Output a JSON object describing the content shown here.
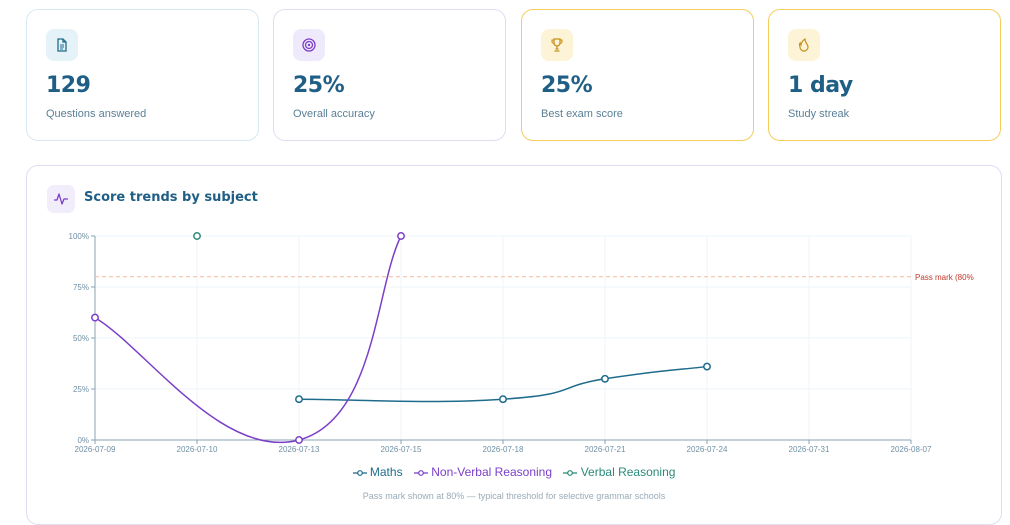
{
  "stats": [
    {
      "value": "129",
      "label": "Questions answered",
      "icon": "document-icon"
    },
    {
      "value": "25%",
      "label": "Overall accuracy",
      "icon": "target-icon"
    },
    {
      "value": "25%",
      "label": "Best exam score",
      "icon": "trophy-icon"
    },
    {
      "value": "1 day",
      "label": "Study streak",
      "icon": "flame-icon"
    }
  ],
  "trends": {
    "title": "Score trends by subject",
    "icon": "activity-icon",
    "note": "Pass mark shown at 80% — typical threshold for selective grammar schools"
  },
  "colors": {
    "maths": "#1f6b8c",
    "nonverbal": "#7b3fc7",
    "verbal": "#2a8a7a",
    "passline": "#f2b9a0",
    "passlabel": "#c0392b",
    "accent_gold": "#c7921a"
  },
  "chart_data": {
    "type": "line",
    "x_ticks": [
      "2026-07-09",
      "2026-07-10",
      "2026-07-13",
      "2026-07-15",
      "2026-07-18",
      "2026-07-21",
      "2026-07-24",
      "2026-07-31",
      "2026-08-07"
    ],
    "y_ticks": [
      "0%",
      "25%",
      "50%",
      "75%",
      "100%"
    ],
    "ylim": [
      0,
      100
    ],
    "pass_mark": {
      "value": 80,
      "label": "Pass mark (80%"
    },
    "series": [
      {
        "name": "Maths",
        "color": "#1f6b8c",
        "points": [
          {
            "x": "2026-07-13",
            "y": 20
          },
          {
            "x": "2026-07-18",
            "y": 20
          },
          {
            "x": "2026-07-21",
            "y": 30
          },
          {
            "x": "2026-07-24",
            "y": 36
          }
        ]
      },
      {
        "name": "Non-Verbal Reasoning",
        "color": "#7b3fc7",
        "points": [
          {
            "x": "2026-07-09",
            "y": 60
          },
          {
            "x": "2026-07-13",
            "y": 0
          },
          {
            "x": "2026-07-15",
            "y": 100
          }
        ]
      },
      {
        "name": "Verbal Reasoning",
        "color": "#2a8a7a",
        "points": [
          {
            "x": "2026-07-10",
            "y": 100
          }
        ]
      }
    ],
    "legend_position": "bottom",
    "grid": true
  }
}
